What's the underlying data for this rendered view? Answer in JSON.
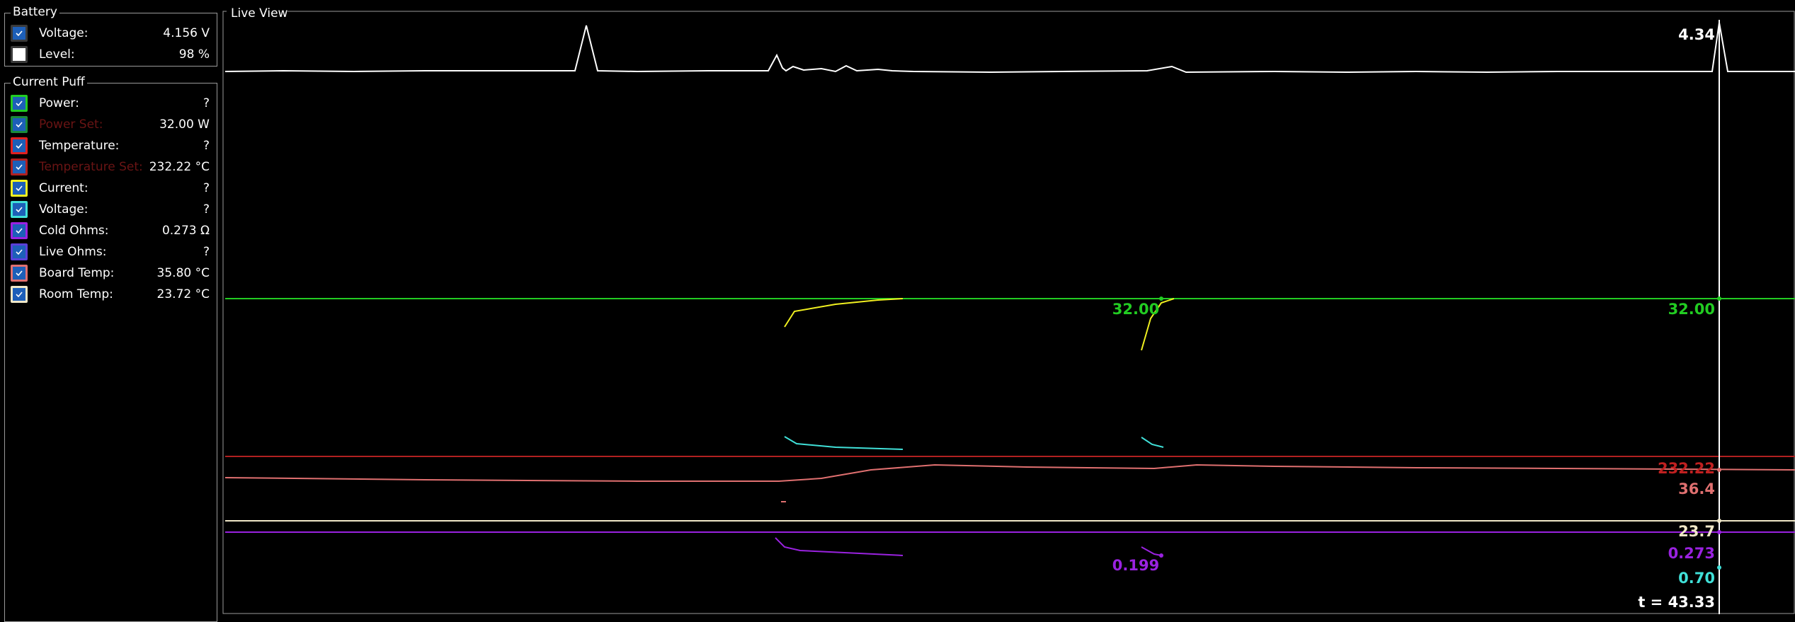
{
  "battery": {
    "title": "Battery",
    "rows": [
      {
        "label": "Voltage:",
        "value": "4.156 V",
        "checked": true,
        "color": "#3a3a3a",
        "disabled": false
      },
      {
        "label": "Level:",
        "value": "98 %",
        "checked": false,
        "color": "#3a3a3a",
        "disabled": false
      }
    ]
  },
  "current_puff": {
    "title": "Current Puff",
    "rows": [
      {
        "label": "Power:",
        "value": "?",
        "checked": true,
        "color": "#22cc22",
        "disabled": false
      },
      {
        "label": "Power Set:",
        "value": "32.00 W",
        "checked": true,
        "color": "#1a8a3a",
        "disabled": true
      },
      {
        "label": "Temperature:",
        "value": "?",
        "checked": true,
        "color": "#e02020",
        "disabled": false
      },
      {
        "label": "Temperature Set:",
        "value": "232.22 °C",
        "checked": true,
        "color": "#b02020",
        "disabled": true
      },
      {
        "label": "Current:",
        "value": "?",
        "checked": true,
        "color": "#f0f020",
        "disabled": false
      },
      {
        "label": "Voltage:",
        "value": "?",
        "checked": true,
        "color": "#40e0d8",
        "disabled": false
      },
      {
        "label": "Cold Ohms:",
        "value": "0.273 Ω",
        "checked": true,
        "color": "#9a22e0",
        "disabled": false
      },
      {
        "label": "Live Ohms:",
        "value": "?",
        "checked": true,
        "color": "#5a40d8",
        "disabled": false
      },
      {
        "label": "Board Temp:",
        "value": "35.80 °C",
        "checked": true,
        "color": "#e07070",
        "disabled": false
      },
      {
        "label": "Room Temp:",
        "value": "23.72 °C",
        "checked": true,
        "color": "#f0e8c8",
        "disabled": false
      }
    ]
  },
  "live_view": {
    "title": "Live View",
    "labels": [
      {
        "text": "4.34",
        "color": "#ffffff"
      },
      {
        "text": "32.00",
        "color": "#22cc22"
      },
      {
        "text": "32.00",
        "color": "#22cc22"
      },
      {
        "text": "232.22",
        "color": "#c02020"
      },
      {
        "text": "36.4",
        "color": "#e07070"
      },
      {
        "text": "23.7",
        "color": "#f0e8c8"
      },
      {
        "text": "0.273",
        "color": "#9a22e0"
      },
      {
        "text": "0.199",
        "color": "#9a22e0"
      },
      {
        "text": "0.70",
        "color": "#40e0d8"
      },
      {
        "text": "t = 43.33",
        "color": "#ffffff"
      }
    ]
  }
}
